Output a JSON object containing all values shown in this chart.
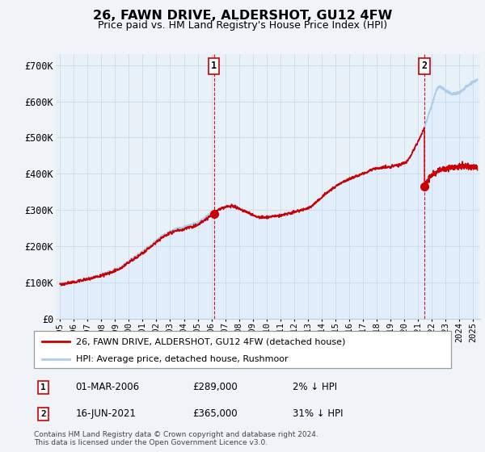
{
  "title": "26, FAWN DRIVE, ALDERSHOT, GU12 4FW",
  "subtitle": "Price paid vs. HM Land Registry's House Price Index (HPI)",
  "ylabel_ticks": [
    "£0",
    "£100K",
    "£200K",
    "£300K",
    "£400K",
    "£500K",
    "£600K",
    "£700K"
  ],
  "ytick_values": [
    0,
    100000,
    200000,
    300000,
    400000,
    500000,
    600000,
    700000
  ],
  "ylim": [
    0,
    730000
  ],
  "xlim_start": 1994.7,
  "xlim_end": 2025.5,
  "legend_line1": "26, FAWN DRIVE, ALDERSHOT, GU12 4FW (detached house)",
  "legend_line2": "HPI: Average price, detached house, Rushmoor",
  "transaction1_date": "01-MAR-2006",
  "transaction1_price": "£289,000",
  "transaction1_hpi": "2% ↓ HPI",
  "transaction2_date": "16-JUN-2021",
  "transaction2_price": "£365,000",
  "transaction2_hpi": "31% ↓ HPI",
  "copyright": "Contains HM Land Registry data © Crown copyright and database right 2024.\nThis data is licensed under the Open Government Licence v3.0.",
  "transaction1_x": 2006.17,
  "transaction1_y": 289000,
  "transaction2_x": 2021.46,
  "transaction2_y": 365000,
  "hpi_at_t2": 530000,
  "line_color_red": "#cc0000",
  "line_color_blue": "#aaccee",
  "fill_color_blue": "#ddeeff",
  "grid_color": "#ccddee",
  "bg_color": "#f0f4f8",
  "plot_bg": "#ddeeff",
  "plot_bg_solid": "#e8f0f8"
}
